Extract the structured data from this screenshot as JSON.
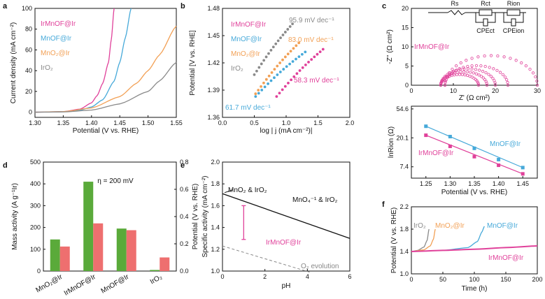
{
  "colors": {
    "IrMnOF@Ir": "#e0419a",
    "MnOF@Ir": "#46a9d9",
    "MnO2@Ir": "#f2a055",
    "IrO2": "#8a8a8a",
    "mass_activity": "#5aaa3a",
    "specific_activity": "#ee6f6f",
    "stability_line": "#111111"
  },
  "chart_data": [
    {
      "panel": "a",
      "type": "line",
      "xlabel": "Potential (V vs. RHE)",
      "ylabel": "Current density (mA cm⁻²)",
      "xlim": [
        1.3,
        1.55
      ],
      "ylim": [
        -5,
        100
      ],
      "xticks": [
        "1.30",
        "1.35",
        "1.40",
        "1.45",
        "1.50",
        "1.55"
      ],
      "yticks": [
        "0",
        "20",
        "40",
        "60",
        "80",
        "100"
      ],
      "series": [
        {
          "name": "IrMnOF@Ir",
          "x": [
            1.3,
            1.35,
            1.38,
            1.4,
            1.41,
            1.42,
            1.43,
            1.435,
            1.44
          ],
          "y": [
            0,
            0.5,
            3,
            9,
            16,
            28,
            48,
            70,
            100
          ]
        },
        {
          "name": "MnOF@Ir",
          "x": [
            1.3,
            1.35,
            1.38,
            1.4,
            1.42,
            1.44,
            1.45,
            1.46,
            1.47
          ],
          "y": [
            0,
            0.5,
            2,
            5,
            12,
            30,
            48,
            72,
            100
          ]
        },
        {
          "name": "MnO₂@Ir",
          "x": [
            1.3,
            1.35,
            1.4,
            1.45,
            1.48,
            1.5,
            1.52,
            1.55
          ],
          "y": [
            0,
            0.5,
            4,
            15,
            28,
            40,
            55,
            83
          ]
        },
        {
          "name": "IrO₂",
          "x": [
            1.3,
            1.35,
            1.4,
            1.45,
            1.5,
            1.52,
            1.55
          ],
          "y": [
            0,
            0.2,
            2,
            8,
            20,
            30,
            48
          ]
        }
      ]
    },
    {
      "panel": "b",
      "type": "scatter",
      "xlabel": "log | j (mA cm⁻²)|",
      "ylabel": "Potential [V vs. RHE]",
      "xlim": [
        0.0,
        2.0
      ],
      "ylim": [
        1.36,
        1.48
      ],
      "xticks": [
        "0.0",
        "0.5",
        "1.0",
        "1.5",
        "2.0"
      ],
      "yticks": [
        "1.36",
        "1.39",
        "1.42",
        "1.45",
        "1.48"
      ],
      "series": [
        {
          "name": "IrMnOF@Ir",
          "slope_label": "58.3 mV dec⁻¹",
          "x0": 0.85,
          "y0": 1.383,
          "x1": 1.58,
          "y1": 1.435
        },
        {
          "name": "MnOF@Ir",
          "slope_label": "61.7 mV dec⁻¹",
          "x0": 0.52,
          "y0": 1.383,
          "x1": 1.3,
          "y1": 1.432
        },
        {
          "name": "MnO₂@Ir",
          "slope_label": "83.0 mV dec⁻¹",
          "x0": 0.52,
          "y0": 1.386,
          "x1": 1.2,
          "y1": 1.442
        },
        {
          "name": "IrO₂",
          "slope_label": "95.9 mV dec⁻¹",
          "x0": 0.5,
          "y0": 1.407,
          "x1": 1.1,
          "y1": 1.463
        }
      ]
    },
    {
      "panel": "c",
      "type": "scatter",
      "xlabel": "Z' (Ω cm²)",
      "ylabel": "-Z'' (Ω cm²)",
      "xlim": [
        0,
        30
      ],
      "ylim": [
        0,
        20
      ],
      "xticks": [
        "0",
        "10",
        "20",
        "30"
      ],
      "yticks": [
        "0",
        "5",
        "10",
        "15",
        "20"
      ],
      "circuit_labels": [
        "Rs",
        "Rct",
        "Rion",
        "CPEct",
        "CPEion"
      ],
      "series": [
        {
          "name": "IrMnOF@Ir",
          "arcs": [
            [
              7,
              16
            ],
            [
              7,
              18
            ],
            [
              7,
              20
            ],
            [
              8,
              23
            ],
            [
              8,
              30
            ]
          ]
        }
      ]
    },
    {
      "panel": "c-lower",
      "type": "scatter",
      "xlabel": "Potential (V vs. RHE)",
      "ylabel": "lnRion (Ω)",
      "xlim": [
        1.22,
        1.48
      ],
      "ylim": [
        5,
        60
      ],
      "xticks": [
        "1.25",
        "1.30",
        "1.35",
        "1.40",
        "1.45"
      ],
      "yticks": [
        "7.4",
        "20.1",
        "54.6"
      ],
      "series": [
        {
          "name": "MnOF@Ir",
          "x": [
            1.25,
            1.3,
            1.35,
            1.4,
            1.45
          ],
          "y": [
            30,
            21,
            14,
            9.5,
            7.2
          ]
        },
        {
          "name": "IrMnOF@Ir",
          "x": [
            1.25,
            1.3,
            1.35,
            1.4,
            1.45
          ],
          "y": [
            22,
            15,
            10.5,
            7.8,
            5.8
          ]
        }
      ]
    },
    {
      "panel": "d",
      "type": "bar",
      "annotation": "η = 200 mV",
      "ylabel": "Mass activity (A g⁻¹Ir)",
      "ylabel2": "Specific activity (mA cm⁻²)",
      "categories": [
        "MnO₂@Ir",
        "IrMnOF@Ir",
        "MnOF@Ir",
        "IrO₂"
      ],
      "ylim": [
        0,
        500
      ],
      "ylim2": [
        0,
        0.8
      ],
      "yticks": [
        "0",
        "100",
        "200",
        "300",
        "400",
        "500"
      ],
      "yticks2": [
        "0.0",
        "0.2",
        "0.4",
        "0.6",
        "0.8"
      ],
      "series": [
        {
          "name": "Mass activity",
          "values": [
            145,
            410,
            195,
            5
          ]
        },
        {
          "name": "Specific activity",
          "values": [
            0.18,
            0.35,
            0.3,
            0.1
          ]
        }
      ]
    },
    {
      "panel": "e",
      "type": "line",
      "xlabel": "pH",
      "ylabel": "Potential (V vs. RHE)",
      "xlim": [
        0,
        6
      ],
      "ylim": [
        1.0,
        2.0
      ],
      "xticks": [
        "0",
        "2",
        "4",
        "6"
      ],
      "yticks": [
        "1.0",
        "1.2",
        "1.4",
        "1.6",
        "1.8",
        "2.0"
      ],
      "labels": [
        "MnO₂ & IrO₂",
        "MnO₄⁻¹ & IrO₂",
        "IrMnOF@Ir",
        "O₂ evolution"
      ],
      "stability_line": {
        "x": [
          0,
          6
        ],
        "y": [
          1.71,
          1.3
        ]
      },
      "o2_line": {
        "x": [
          0,
          6
        ],
        "y": [
          1.23,
          0.88
        ]
      },
      "range_bar": {
        "x": 1.0,
        "y": [
          1.29,
          1.6
        ]
      }
    },
    {
      "panel": "f",
      "type": "line",
      "xlabel": "Time (h)",
      "ylabel": "Potential (V vs. RHE)",
      "xlim": [
        0,
        200
      ],
      "ylim": [
        1.0,
        2.2
      ],
      "xticks": [
        "0",
        "50",
        "100",
        "150",
        "200"
      ],
      "yticks": [
        "1.0",
        "1.4",
        "1.8",
        "2.2"
      ],
      "series": [
        {
          "name": "IrO₂",
          "x": [
            0,
            10,
            20,
            25,
            28
          ],
          "y": [
            1.4,
            1.42,
            1.48,
            1.6,
            1.8
          ]
        },
        {
          "name": "MnO₂@Ir",
          "x": [
            0,
            20,
            30,
            35,
            38
          ],
          "y": [
            1.4,
            1.43,
            1.5,
            1.62,
            1.8
          ]
        },
        {
          "name": "MnOF@Ir",
          "x": [
            0,
            50,
            90,
            105,
            112,
            116
          ],
          "y": [
            1.4,
            1.42,
            1.47,
            1.58,
            1.75,
            1.85
          ]
        },
        {
          "name": "IrMnOF@Ir",
          "x": [
            0,
            50,
            100,
            150,
            200
          ],
          "y": [
            1.4,
            1.42,
            1.44,
            1.47,
            1.5
          ]
        }
      ]
    }
  ]
}
